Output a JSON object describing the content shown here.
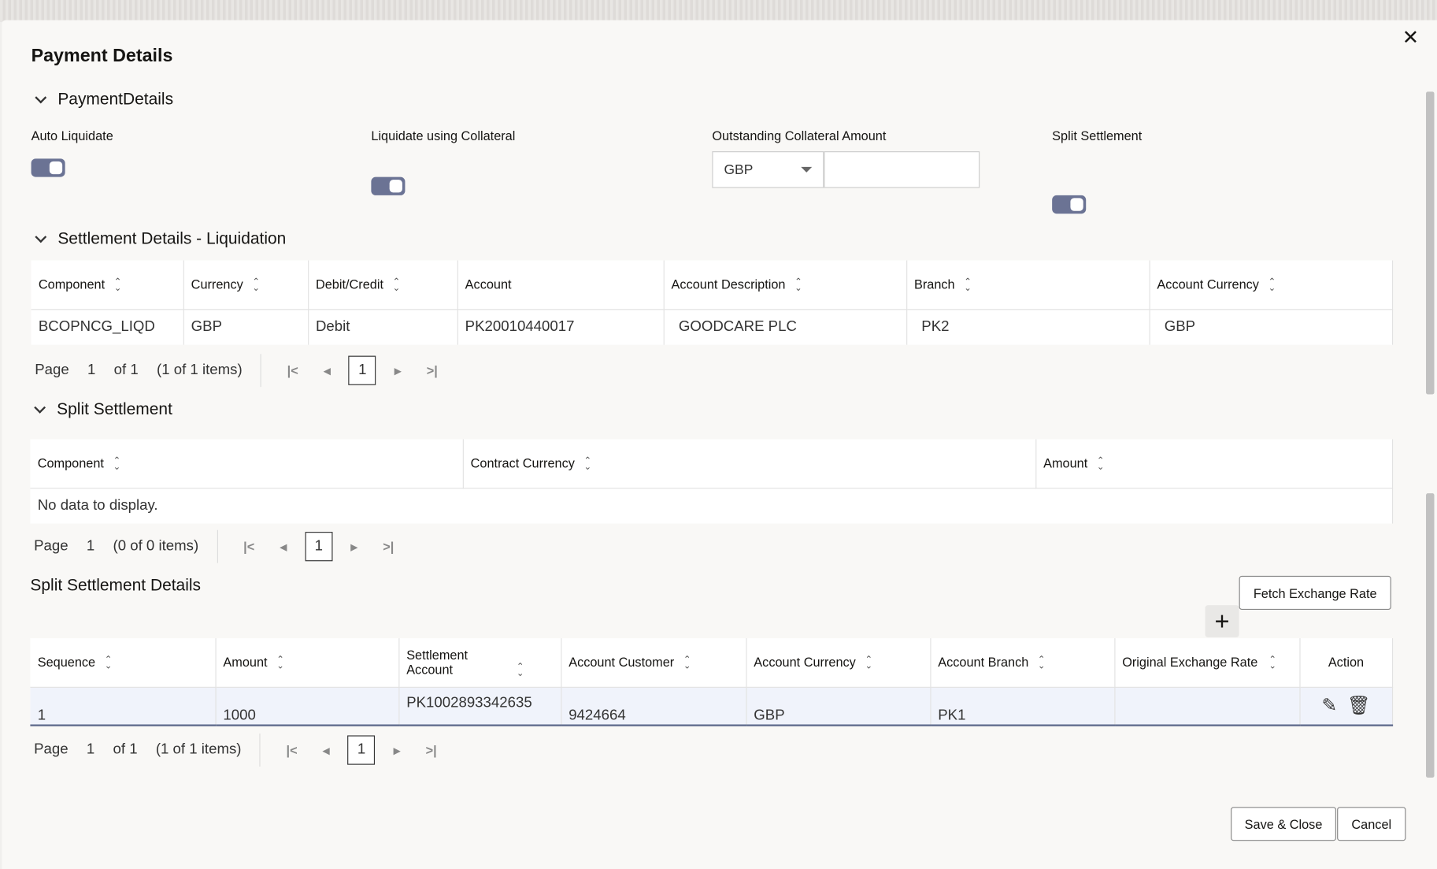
{
  "dialog": {
    "title": "Payment Details",
    "close_icon": "close-icon"
  },
  "payment": {
    "section": "PaymentDetails",
    "auto_liquidate": "Auto Liquidate",
    "liquidate_collateral": "Liquidate using Collateral",
    "outstanding": "Outstanding Collateral Amount",
    "currency": "GBP",
    "amount": "",
    "split_settlement": "Split Settlement",
    "toggles": {
      "auto_liquidate": true,
      "liquidate_collateral": true,
      "split_settlement": true
    }
  },
  "liquidation": {
    "section": "Settlement Details - Liquidation",
    "headers": [
      "Component",
      "Currency",
      "Debit/Credit",
      "Account",
      "Account Description",
      "Branch",
      "Account Currency"
    ],
    "rows": [
      [
        "BCOPNCG_LIQD",
        "GBP",
        "Debit",
        "PK20010440017",
        "GOODCARE PLC",
        "PK2",
        "GBP"
      ]
    ],
    "pager": {
      "page_label": "Page",
      "page": "1",
      "of": "of 1",
      "items": "(1 of 1 items)",
      "current": "1"
    }
  },
  "split": {
    "section": "Split Settlement",
    "headers": [
      "Component",
      "Contract Currency",
      "Amount"
    ],
    "empty": "No data to display.",
    "pager": {
      "page_label": "Page",
      "page": "1",
      "items": "(0 of 0 items)",
      "current": "1"
    }
  },
  "split_details": {
    "title": "Split Settlement Details",
    "fetch": "Fetch Exchange Rate",
    "headers": [
      "Sequence",
      "Amount",
      "Settlement Account",
      "Account Customer",
      "Account Currency",
      "Account Branch",
      "Original Exchange Rate",
      "Action"
    ],
    "rows": [
      [
        "1",
        "1000",
        "PK1002893342635",
        "9424664",
        "GBP",
        "PK1",
        ""
      ]
    ],
    "pager": {
      "page_label": "Page",
      "page": "1",
      "of": "of 1",
      "items": "(1 of 1 items)",
      "current": "1"
    }
  },
  "footer": {
    "save": "Save & Close",
    "cancel": "Cancel"
  },
  "colors": {
    "toggle": "#6b7394",
    "row_highlight": "#f0f3fb"
  }
}
